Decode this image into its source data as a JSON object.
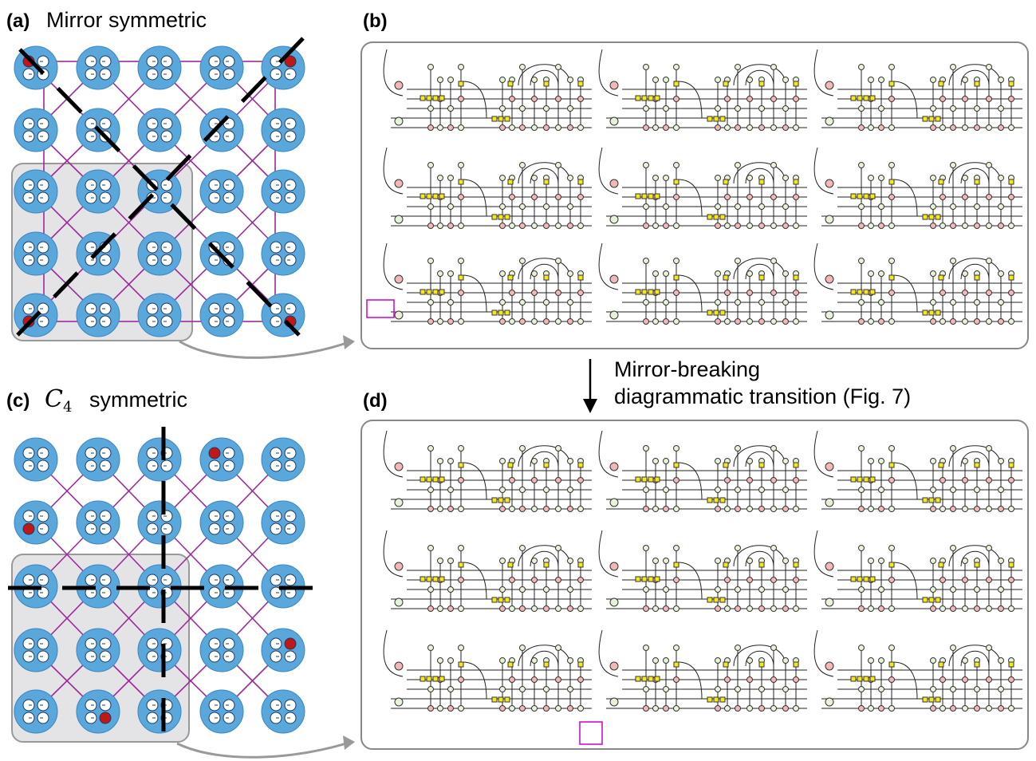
{
  "panels": [
    {
      "label": "(a)",
      "title": "Mirror symmetric"
    },
    {
      "label": "(b)"
    },
    {
      "label": "(c)",
      "title_math": "C",
      "title_sub": "4",
      "title": "symmetric"
    },
    {
      "label": "(d)"
    }
  ],
  "transition": {
    "lines": [
      "Mirror-breaking",
      "diagrammatic transition (Fig. 7)"
    ]
  }
}
